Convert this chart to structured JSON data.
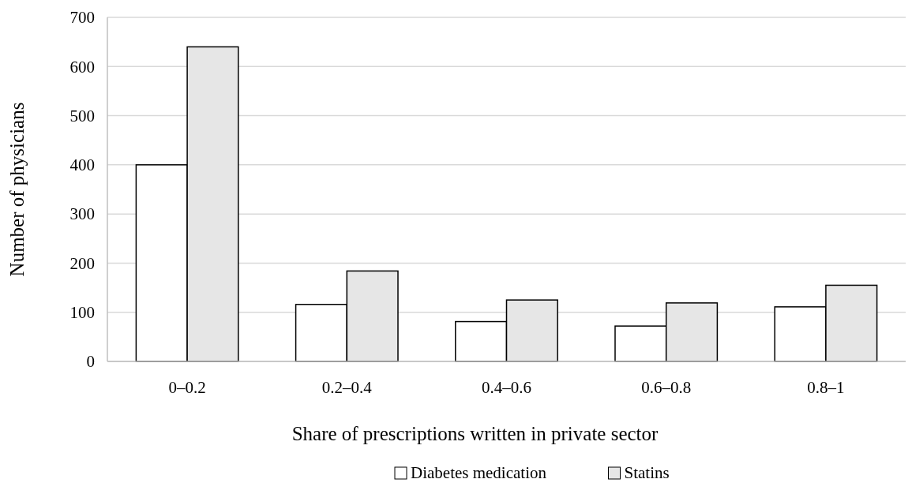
{
  "chart_data": {
    "type": "bar",
    "xlabel": "Share of prescriptions written in private sector",
    "ylabel": "Number of physicians",
    "categories": [
      "0–0.2",
      "0.2–0.4",
      "0.4–0.6",
      "0.6–0.8",
      "0.8–1"
    ],
    "series": [
      {
        "name": "Diabetes medication",
        "color": "#ffffff",
        "values": [
          400,
          116,
          81,
          72,
          111
        ]
      },
      {
        "name": "Statins",
        "color": "#e6e6e6",
        "values": [
          640,
          184,
          125,
          119,
          155
        ]
      }
    ],
    "ylim": [
      0,
      700
    ],
    "yticks": [
      0,
      100,
      200,
      300,
      400,
      500,
      600,
      700
    ],
    "grid": "y",
    "legend": "bottom"
  }
}
